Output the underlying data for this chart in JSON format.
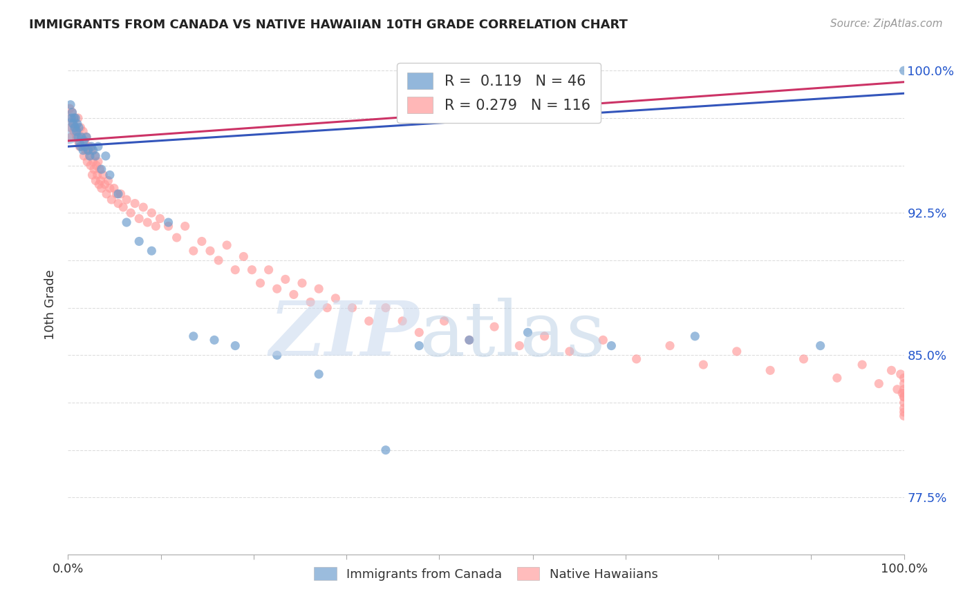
{
  "title": "IMMIGRANTS FROM CANADA VS NATIVE HAWAIIAN 10TH GRADE CORRELATION CHART",
  "source_text": "Source: ZipAtlas.com",
  "ylabel": "10th Grade",
  "xlim": [
    0.0,
    1.0
  ],
  "ylim": [
    0.745,
    1.008
  ],
  "ytick_positions": [
    0.775,
    0.8,
    0.825,
    0.85,
    0.875,
    0.9,
    0.925,
    0.95,
    0.975,
    1.0
  ],
  "ytick_labels": [
    "77.5%",
    "",
    "",
    "85.0%",
    "",
    "",
    "92.5%",
    "",
    "",
    "100.0%"
  ],
  "xtick_positions": [
    0.0,
    0.111,
    0.222,
    0.333,
    0.444,
    0.556,
    0.667,
    0.778,
    0.889,
    1.0
  ],
  "xtick_labels": [
    "0.0%",
    "",
    "",
    "",
    "",
    "",
    "",
    "",
    "",
    "100.0%"
  ],
  "background_color": "#ffffff",
  "grid_color": "#dddddd",
  "blue_color": "#6699cc",
  "pink_color": "#ff9999",
  "blue_line_color": "#3355bb",
  "pink_line_color": "#cc3366",
  "legend_blue_R": " 0.119",
  "legend_blue_N": "46",
  "legend_pink_R": "0.279",
  "legend_pink_N": "116",
  "blue_line_x": [
    0.0,
    1.0
  ],
  "blue_line_y": [
    0.96,
    0.988
  ],
  "pink_line_x": [
    0.0,
    1.0
  ],
  "pink_line_y": [
    0.963,
    0.994
  ],
  "blue_x": [
    0.0,
    0.003,
    0.004,
    0.005,
    0.006,
    0.007,
    0.008,
    0.009,
    0.01,
    0.011,
    0.012,
    0.013,
    0.014,
    0.015,
    0.016,
    0.018,
    0.019,
    0.02,
    0.022,
    0.024,
    0.026,
    0.028,
    0.03,
    0.033,
    0.036,
    0.04,
    0.045,
    0.05,
    0.06,
    0.07,
    0.085,
    0.1,
    0.12,
    0.15,
    0.175,
    0.2,
    0.25,
    0.3,
    0.38,
    0.42,
    0.48,
    0.55,
    0.65,
    0.75,
    0.9,
    1.0
  ],
  "blue_y": [
    0.968,
    0.982,
    0.975,
    0.978,
    0.972,
    0.975,
    0.97,
    0.975,
    0.968,
    0.972,
    0.965,
    0.97,
    0.962,
    0.96,
    0.965,
    0.958,
    0.963,
    0.96,
    0.965,
    0.958,
    0.955,
    0.96,
    0.958,
    0.955,
    0.96,
    0.948,
    0.955,
    0.945,
    0.935,
    0.92,
    0.91,
    0.905,
    0.92,
    0.86,
    0.858,
    0.855,
    0.85,
    0.84,
    0.8,
    0.855,
    0.858,
    0.862,
    0.855,
    0.86,
    0.855,
    1.0
  ],
  "blue_sizes": [
    700,
    80,
    80,
    80,
    80,
    80,
    80,
    80,
    80,
    80,
    80,
    80,
    80,
    80,
    80,
    80,
    80,
    80,
    80,
    80,
    80,
    80,
    80,
    80,
    80,
    80,
    80,
    80,
    80,
    80,
    80,
    80,
    80,
    80,
    80,
    80,
    80,
    80,
    80,
    80,
    80,
    80,
    80,
    80,
    80,
    130
  ],
  "pink_x": [
    0.0,
    0.002,
    0.003,
    0.004,
    0.005,
    0.006,
    0.007,
    0.008,
    0.009,
    0.01,
    0.011,
    0.012,
    0.013,
    0.014,
    0.015,
    0.016,
    0.017,
    0.018,
    0.019,
    0.02,
    0.021,
    0.022,
    0.023,
    0.024,
    0.025,
    0.026,
    0.027,
    0.028,
    0.029,
    0.03,
    0.031,
    0.032,
    0.033,
    0.034,
    0.035,
    0.036,
    0.037,
    0.038,
    0.039,
    0.04,
    0.042,
    0.044,
    0.046,
    0.048,
    0.05,
    0.052,
    0.055,
    0.058,
    0.06,
    0.063,
    0.066,
    0.07,
    0.075,
    0.08,
    0.085,
    0.09,
    0.095,
    0.1,
    0.105,
    0.11,
    0.12,
    0.13,
    0.14,
    0.15,
    0.16,
    0.17,
    0.18,
    0.19,
    0.2,
    0.21,
    0.22,
    0.23,
    0.24,
    0.25,
    0.26,
    0.27,
    0.28,
    0.29,
    0.3,
    0.31,
    0.32,
    0.34,
    0.36,
    0.38,
    0.4,
    0.42,
    0.45,
    0.48,
    0.51,
    0.54,
    0.57,
    0.6,
    0.64,
    0.68,
    0.72,
    0.76,
    0.8,
    0.84,
    0.88,
    0.92,
    0.95,
    0.97,
    0.985,
    0.992,
    0.996,
    0.998,
    1.0,
    1.0,
    1.0,
    1.0,
    1.0,
    1.0,
    1.0,
    1.0,
    1.0,
    1.0
  ],
  "pink_y": [
    0.975,
    0.98,
    0.97,
    0.965,
    0.978,
    0.972,
    0.968,
    0.975,
    0.97,
    0.965,
    0.968,
    0.975,
    0.962,
    0.96,
    0.97,
    0.965,
    0.96,
    0.968,
    0.955,
    0.962,
    0.958,
    0.965,
    0.952,
    0.958,
    0.96,
    0.955,
    0.95,
    0.958,
    0.945,
    0.952,
    0.948,
    0.955,
    0.942,
    0.95,
    0.945,
    0.952,
    0.94,
    0.948,
    0.942,
    0.938,
    0.945,
    0.94,
    0.935,
    0.942,
    0.938,
    0.932,
    0.938,
    0.935,
    0.93,
    0.935,
    0.928,
    0.932,
    0.925,
    0.93,
    0.922,
    0.928,
    0.92,
    0.925,
    0.918,
    0.922,
    0.918,
    0.912,
    0.918,
    0.905,
    0.91,
    0.905,
    0.9,
    0.908,
    0.895,
    0.902,
    0.895,
    0.888,
    0.895,
    0.885,
    0.89,
    0.882,
    0.888,
    0.878,
    0.885,
    0.875,
    0.88,
    0.875,
    0.868,
    0.875,
    0.868,
    0.862,
    0.868,
    0.858,
    0.865,
    0.855,
    0.86,
    0.852,
    0.858,
    0.848,
    0.855,
    0.845,
    0.852,
    0.842,
    0.848,
    0.838,
    0.845,
    0.835,
    0.842,
    0.832,
    0.84,
    0.83,
    0.838,
    0.828,
    0.835,
    0.825,
    0.832,
    0.822,
    0.83,
    0.82,
    0.828,
    0.818
  ]
}
